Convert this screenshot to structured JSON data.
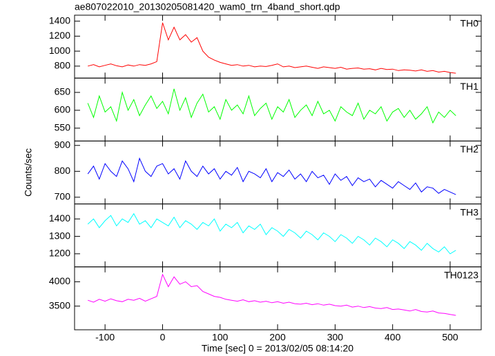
{
  "chart_data": {
    "type": "line",
    "title": "ae807022010_20130205081420_wam0_trn_4band_short.qdp",
    "ylabel": "Counts/sec",
    "xlabel": "Time [sec] 0 = 2013/02/05 08:14:20",
    "xlim": [
      -153,
      554
    ],
    "xticks": [
      -100,
      0,
      100,
      200,
      300,
      400,
      500
    ],
    "x": [
      -130,
      -120,
      -110,
      -100,
      -90,
      -80,
      -70,
      -60,
      -50,
      -40,
      -30,
      -20,
      -10,
      0,
      10,
      20,
      30,
      40,
      50,
      60,
      70,
      80,
      90,
      100,
      110,
      120,
      130,
      140,
      150,
      160,
      170,
      180,
      190,
      200,
      210,
      220,
      230,
      240,
      250,
      260,
      270,
      280,
      290,
      300,
      310,
      320,
      330,
      340,
      350,
      360,
      370,
      380,
      390,
      400,
      410,
      420,
      430,
      440,
      450,
      460,
      470,
      480,
      490,
      500,
      510
    ],
    "series": [
      {
        "name": "TH0",
        "color": "#ff0000",
        "ylim": [
          640,
          1480
        ],
        "yticks": [
          800,
          1000,
          1200,
          1400
        ],
        "values": [
          800,
          820,
          790,
          810,
          830,
          805,
          790,
          815,
          800,
          820,
          810,
          830,
          860,
          1380,
          1150,
          1320,
          1150,
          1220,
          1120,
          1180,
          1000,
          920,
          880,
          850,
          830,
          810,
          820,
          800,
          810,
          790,
          800,
          795,
          810,
          830,
          790,
          800,
          780,
          790,
          800,
          785,
          770,
          790,
          780,
          770,
          785,
          760,
          770,
          775,
          760,
          765,
          750,
          770,
          755,
          760,
          740,
          750,
          745,
          735,
          750,
          730,
          740,
          720,
          730,
          715,
          705
        ]
      },
      {
        "name": "TH1",
        "color": "#00ff00",
        "ylim": [
          514,
          690
        ],
        "yticks": [
          550,
          600,
          650
        ],
        "values": [
          620,
          580,
          640,
          595,
          610,
          570,
          650,
          600,
          630,
          585,
          615,
          640,
          605,
          625,
          590,
          660,
          600,
          635,
          580,
          620,
          645,
          595,
          610,
          575,
          630,
          600,
          615,
          590,
          640,
          585,
          605,
          620,
          575,
          610,
          595,
          630,
          580,
          600,
          615,
          585,
          625,
          590,
          600,
          570,
          610,
          595,
          585,
          620,
          575,
          600,
          590,
          610,
          570,
          595,
          605,
          580,
          600,
          575,
          590,
          610,
          565,
          595,
          580,
          600,
          585
        ]
      },
      {
        "name": "TH2",
        "color": "#0000ff",
        "ylim": [
          674,
          917
        ],
        "yticks": [
          700,
          800,
          900
        ],
        "values": [
          790,
          820,
          770,
          830,
          800,
          780,
          840,
          810,
          760,
          850,
          800,
          780,
          820,
          830,
          790,
          810,
          770,
          840,
          800,
          780,
          820,
          790,
          810,
          770,
          800,
          785,
          815,
          760,
          800,
          790,
          775,
          810,
          760,
          795,
          780,
          805,
          770,
          790,
          760,
          800,
          775,
          785,
          750,
          790,
          765,
          780,
          745,
          775,
          760,
          770,
          740,
          765,
          750,
          735,
          760,
          745,
          730,
          755,
          720,
          740,
          735,
          715,
          730,
          720,
          710
        ]
      },
      {
        "name": "TH3",
        "color": "#00ffff",
        "ylim": [
          1125,
          1486
        ],
        "yticks": [
          1200,
          1300,
          1400
        ],
        "values": [
          1370,
          1400,
          1350,
          1390,
          1420,
          1360,
          1400,
          1380,
          1430,
          1370,
          1390,
          1350,
          1400,
          1380,
          1360,
          1410,
          1350,
          1390,
          1370,
          1340,
          1380,
          1360,
          1400,
          1330,
          1370,
          1350,
          1380,
          1320,
          1360,
          1340,
          1370,
          1310,
          1350,
          1330,
          1300,
          1340,
          1320,
          1290,
          1330,
          1310,
          1280,
          1320,
          1300,
          1270,
          1310,
          1290,
          1260,
          1300,
          1280,
          1250,
          1290,
          1270,
          1240,
          1280,
          1260,
          1230,
          1270,
          1250,
          1220,
          1260,
          1230,
          1210,
          1240,
          1200,
          1220
        ]
      },
      {
        "name": "TH0123",
        "color": "#ff00ff",
        "ylim": [
          3014,
          4306
        ],
        "yticks": [
          3500,
          4000
        ],
        "values": [
          3620,
          3580,
          3640,
          3600,
          3650,
          3610,
          3590,
          3640,
          3620,
          3660,
          3600,
          3650,
          3700,
          4150,
          3900,
          4100,
          3950,
          4000,
          3900,
          3920,
          3800,
          3750,
          3700,
          3680,
          3640,
          3620,
          3600,
          3630,
          3590,
          3610,
          3580,
          3600,
          3570,
          3590,
          3560,
          3580,
          3550,
          3540,
          3560,
          3530,
          3550,
          3520,
          3540,
          3510,
          3500,
          3520,
          3480,
          3500,
          3470,
          3490,
          3460,
          3450,
          3470,
          3430,
          3440,
          3420,
          3400,
          3430,
          3390,
          3380,
          3400,
          3360,
          3350,
          3330,
          3310
        ]
      }
    ]
  }
}
